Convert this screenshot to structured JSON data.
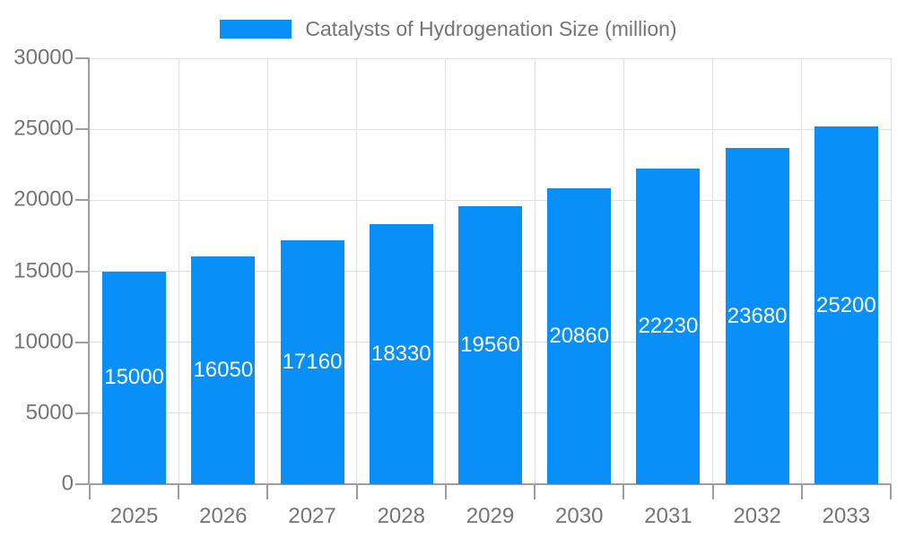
{
  "chart_data": {
    "type": "bar",
    "title": "Catalysts of Hydrogenation Size (million)",
    "categories": [
      "2025",
      "2026",
      "2027",
      "2028",
      "2029",
      "2030",
      "2031",
      "2032",
      "2033"
    ],
    "values": [
      15000,
      16050,
      17160,
      18330,
      19560,
      20860,
      22230,
      23680,
      25200
    ],
    "value_labels": [
      "15000",
      "16050",
      "17160",
      "18330",
      "19560",
      "20860",
      "22230",
      "23680",
      "25200"
    ],
    "y_ticks": [
      0,
      5000,
      10000,
      15000,
      20000,
      25000,
      30000
    ],
    "y_tick_labels": [
      "0",
      "5000",
      "10000",
      "15000",
      "20000",
      "25000",
      "30000"
    ],
    "ylim": [
      0,
      30000
    ],
    "xlabel": "",
    "ylabel": "",
    "grid": "on",
    "legend_position": "top",
    "colors": {
      "bar": "#0890f8",
      "value_label": "#ffffff",
      "grid_line": "#e0e0e0",
      "axis_line": "#9e9e9e",
      "tick_label": "#757575",
      "legend_text": "#757575",
      "background": "#ffffff"
    }
  }
}
